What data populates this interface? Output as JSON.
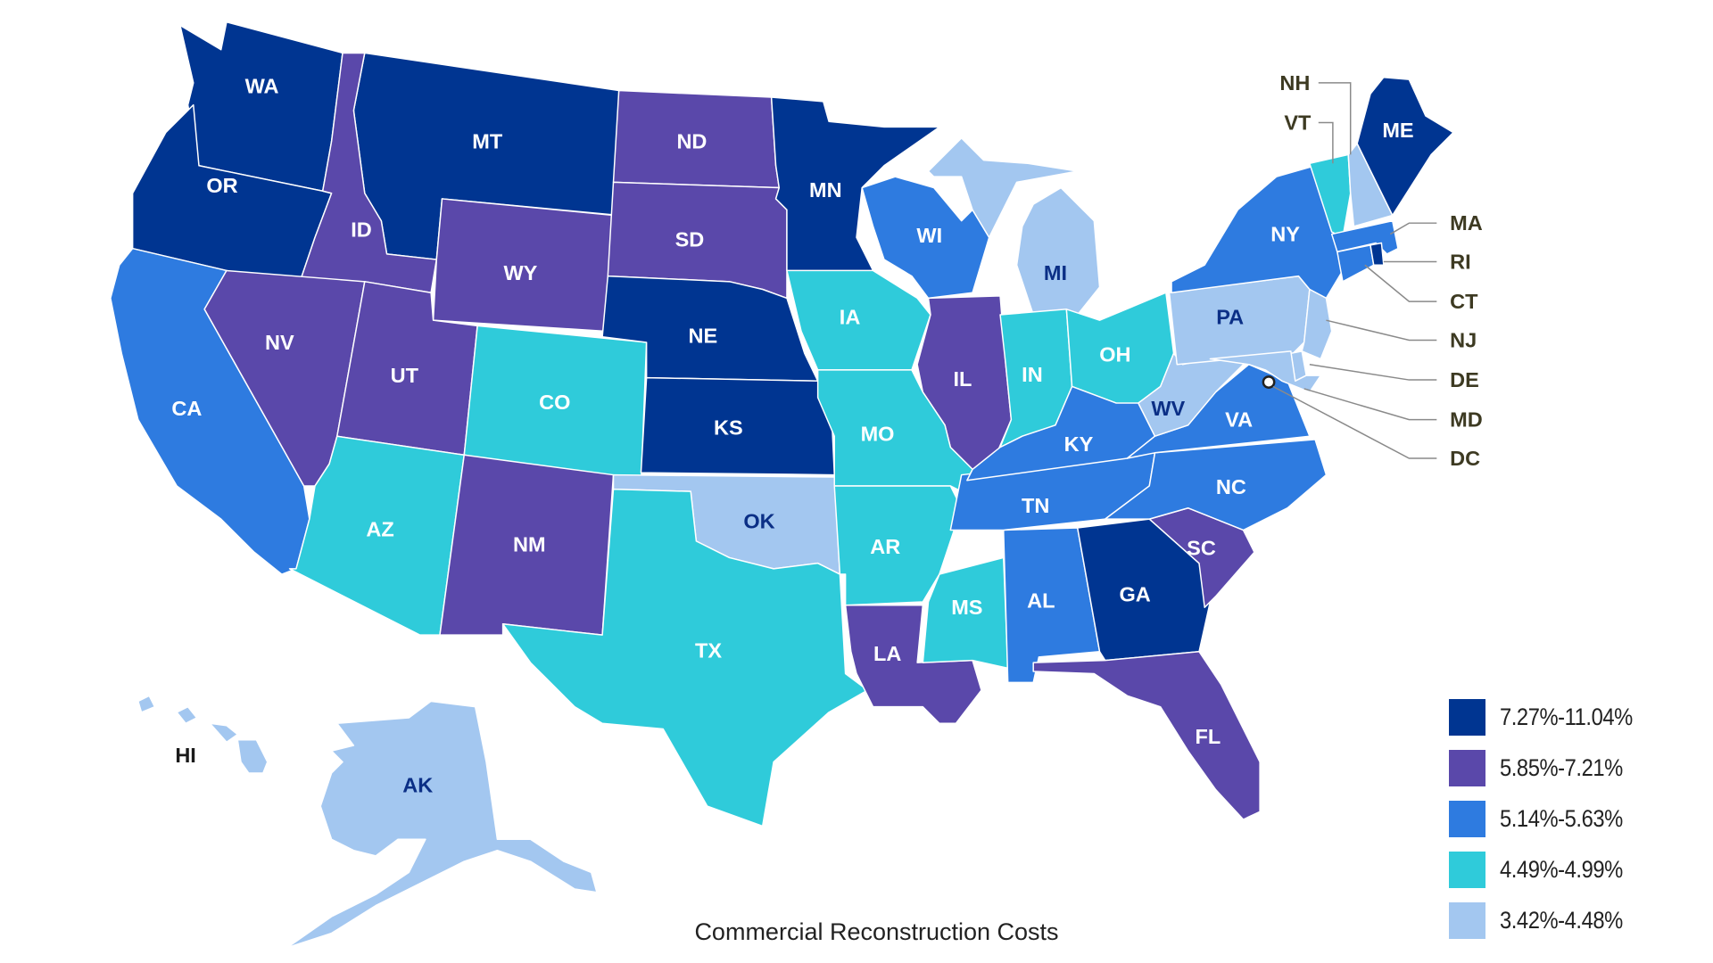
{
  "chart_data": {
    "type": "choropleth",
    "title": "Commercial Reconstruction Costs",
    "legend_position": "bottom-right",
    "bins": [
      {
        "id": "b1",
        "label": "7.27%-11.04%",
        "color": "#003591",
        "text_color": "#ffffff"
      },
      {
        "id": "b2",
        "label": "5.85%-7.21%",
        "color": "#5a48aa",
        "text_color": "#ffffff"
      },
      {
        "id": "b3",
        "label": "5.14%-5.63%",
        "color": "#2e7be0",
        "text_color": "#ffffff"
      },
      {
        "id": "b4",
        "label": "4.49%-4.99%",
        "color": "#2fcbda",
        "text_color": "#ffffff"
      },
      {
        "id": "b5",
        "label": "3.42%-4.48%",
        "color": "#a3c7f0",
        "text_color": "#0b2f86"
      }
    ],
    "states": {
      "WA": "b1",
      "OR": "b1",
      "MT": "b1",
      "MN": "b1",
      "NE": "b1",
      "KS": "b1",
      "GA": "b1",
      "ME": "b1",
      "RI": "b1",
      "ID": "b2",
      "WY": "b2",
      "ND": "b2",
      "SD": "b2",
      "NV": "b2",
      "UT": "b2",
      "NM": "b2",
      "IL": "b2",
      "LA": "b2",
      "SC": "b2",
      "FL": "b2",
      "CA": "b3",
      "WI": "b3",
      "NY": "b3",
      "MA": "b3",
      "CT": "b3",
      "KY": "b3",
      "TN": "b3",
      "VA": "b3",
      "NC": "b3",
      "AL": "b3",
      "IA": "b4",
      "CO": "b4",
      "AZ": "b4",
      "TX": "b4",
      "MO": "b4",
      "AR": "b4",
      "MS": "b4",
      "IN": "b4",
      "OH": "b4",
      "VT": "b4",
      "OK": "b5",
      "MI": "b5",
      "PA": "b5",
      "WV": "b5",
      "NJ": "b5",
      "DE": "b5",
      "MD": "b5",
      "NH": "b5",
      "AK": "b5",
      "HI": "b5",
      "DC": "b5"
    }
  },
  "title": "Commercial Reconstruction Costs",
  "legend": [
    {
      "label": "7.27%-11.04%",
      "color": "#003591"
    },
    {
      "label": "5.85%-7.21%",
      "color": "#5a48aa"
    },
    {
      "label": "5.14%-5.63%",
      "color": "#2e7be0"
    },
    {
      "label": "4.49%-4.99%",
      "color": "#2fcbda"
    },
    {
      "label": "3.42%-4.48%",
      "color": "#a3c7f0"
    }
  ],
  "callouts": [
    {
      "abbr": "NH"
    },
    {
      "abbr": "VT"
    },
    {
      "abbr": "MA"
    },
    {
      "abbr": "RI"
    },
    {
      "abbr": "CT"
    },
    {
      "abbr": "NJ"
    },
    {
      "abbr": "DE"
    },
    {
      "abbr": "MD"
    },
    {
      "abbr": "DC"
    }
  ],
  "labels": {
    "WA": "WA",
    "OR": "OR",
    "MT": "MT",
    "ID": "ID",
    "WY": "WY",
    "ND": "ND",
    "SD": "SD",
    "MN": "MN",
    "WI": "WI",
    "MI": "MI",
    "CA": "CA",
    "NV": "NV",
    "UT": "UT",
    "CO": "CO",
    "NE": "NE",
    "KS": "KS",
    "IA": "IA",
    "IL": "IL",
    "IN": "IN",
    "OH": "OH",
    "PA": "PA",
    "NY": "NY",
    "ME": "ME",
    "AZ": "AZ",
    "NM": "NM",
    "OK": "OK",
    "TX": "TX",
    "MO": "MO",
    "AR": "AR",
    "LA": "LA",
    "MS": "MS",
    "AL": "AL",
    "TN": "TN",
    "KY": "KY",
    "WV": "WV",
    "VA": "VA",
    "NC": "NC",
    "SC": "SC",
    "GA": "GA",
    "FL": "FL",
    "AK": "AK",
    "HI": "HI"
  }
}
